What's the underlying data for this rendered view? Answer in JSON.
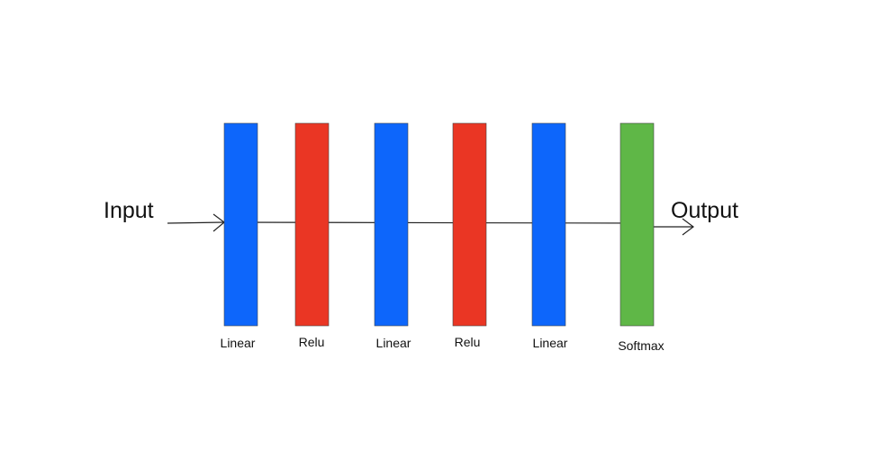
{
  "input": "Input",
  "output": "Output",
  "layers": [
    {
      "label": "Linear"
    },
    {
      "label": "Relu"
    },
    {
      "label": "Linear"
    },
    {
      "label": "Relu"
    },
    {
      "label": "Linear"
    },
    {
      "label": "Softmax"
    }
  ]
}
